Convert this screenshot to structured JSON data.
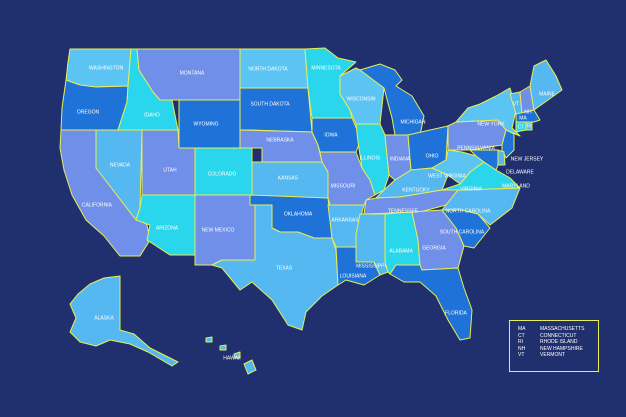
{
  "colors": {
    "background": "#20306e",
    "border": "#e9ee52",
    "label": "#ffffff"
  },
  "states": {
    "WA": {
      "label": "WASHINGTON",
      "fill": "#5cc4f2"
    },
    "OR": {
      "label": "OREGON",
      "fill": "#1f73d8"
    },
    "CA": {
      "label": "CALIFORNIA",
      "fill": "#6f8fe8"
    },
    "NV": {
      "label": "NEVADA",
      "fill": "#56b8f0"
    },
    "ID": {
      "label": "IDAHO",
      "fill": "#2ad6ec"
    },
    "MT": {
      "label": "MONTANA",
      "fill": "#6f8fe8"
    },
    "WY": {
      "label": "WYOMING",
      "fill": "#1f73d8"
    },
    "UT": {
      "label": "UTAH",
      "fill": "#6f8fe8"
    },
    "AZ": {
      "label": "ARIZONA",
      "fill": "#2ad6ec"
    },
    "CO": {
      "label": "COLORADO",
      "fill": "#2ad6ec"
    },
    "NM": {
      "label": "NEW MEXICO",
      "fill": "#6f8fe8"
    },
    "ND": {
      "label": "NORTH DAKOTA",
      "fill": "#5cc4f2"
    },
    "SD": {
      "label": "SOUTH DAKOTA",
      "fill": "#1f73d8"
    },
    "NE": {
      "label": "NEBRASKA",
      "fill": "#6f8fe8"
    },
    "KS": {
      "label": "KANSAS",
      "fill": "#56b8f0"
    },
    "OK": {
      "label": "OKLAHOMA",
      "fill": "#1f73d8"
    },
    "TX": {
      "label": "TEXAS",
      "fill": "#56b8f0"
    },
    "MN": {
      "label": "MINNESOTA",
      "fill": "#2ad6ec"
    },
    "IA": {
      "label": "IOWA",
      "fill": "#1f73d8"
    },
    "MO": {
      "label": "MISSOURI",
      "fill": "#6f8fe8"
    },
    "AR": {
      "label": "ARKANSAS",
      "fill": "#56b8f0"
    },
    "LA": {
      "label": "LOUISIANA",
      "fill": "#1f73d8"
    },
    "WI": {
      "label": "WISCONSIN",
      "fill": "#5cc4f2"
    },
    "IL": {
      "label": "ILLINOIS",
      "fill": "#2ad6ec"
    },
    "MI": {
      "label": "MICHIGAN",
      "fill": "#1f73d8"
    },
    "IN": {
      "label": "INDIANA",
      "fill": "#6f8fe8"
    },
    "OH": {
      "label": "OHIO",
      "fill": "#1f73d8"
    },
    "KY": {
      "label": "KENTUCKY",
      "fill": "#56b8f0"
    },
    "TN": {
      "label": "TENNESSEE",
      "fill": "#6f8fe8"
    },
    "MS": {
      "label": "MISSISSIPPI",
      "fill": "#56b8f0"
    },
    "AL": {
      "label": "ALABAMA",
      "fill": "#2ad6ec"
    },
    "GA": {
      "label": "GEORGIA",
      "fill": "#6f8fe8"
    },
    "FL": {
      "label": "FLORIDA",
      "fill": "#1f73d8"
    },
    "SC": {
      "label": "SOUTH CAROLINA",
      "fill": "#1f73d8"
    },
    "NC": {
      "label": "NORTH CAROLINA",
      "fill": "#56b8f0"
    },
    "VA": {
      "label": "VIRGINIA",
      "fill": "#2ad6ec"
    },
    "WV": {
      "label": "WEST VIRGINIA",
      "fill": "#5cc4f2"
    },
    "PA": {
      "label": "PENNSYLVANIA",
      "fill": "#6f8fe8"
    },
    "NY": {
      "label": "NEW YORK",
      "fill": "#5cc4f2"
    },
    "NJ": {
      "label": "NEW JERSEY",
      "fill": "#1f73d8"
    },
    "DE": {
      "label": "DELAWARE",
      "fill": "#56b8f0"
    },
    "MD": {
      "label": "MARYLAND",
      "fill": "#1f73d8"
    },
    "VT": {
      "label": "VT",
      "fill": "#56b8f0"
    },
    "NH": {
      "label": "NH",
      "fill": "#6f8fe8"
    },
    "ME": {
      "label": "MAINE",
      "fill": "#56b8f0"
    },
    "MA": {
      "label": "MA",
      "fill": "#1f73d8"
    },
    "CT": {
      "label": "CT",
      "fill": "#2ad6ec"
    },
    "RI": {
      "label": "RI",
      "fill": "#56b8f0"
    },
    "AK": {
      "label": "ALASKA",
      "fill": "#56b8f0"
    },
    "HI": {
      "label": "HAWAII",
      "fill": "#56b8f0"
    }
  },
  "legend": {
    "rows": [
      {
        "code": "MA",
        "name": "MASSACHUSETTS"
      },
      {
        "code": "CT",
        "name": "CONNECTICUT"
      },
      {
        "code": "RI",
        "name": "RHODE ISLAND"
      },
      {
        "code": "NH",
        "name": "NEW HAMPSHIRE"
      },
      {
        "code": "VT",
        "name": "VERMONT"
      }
    ]
  }
}
